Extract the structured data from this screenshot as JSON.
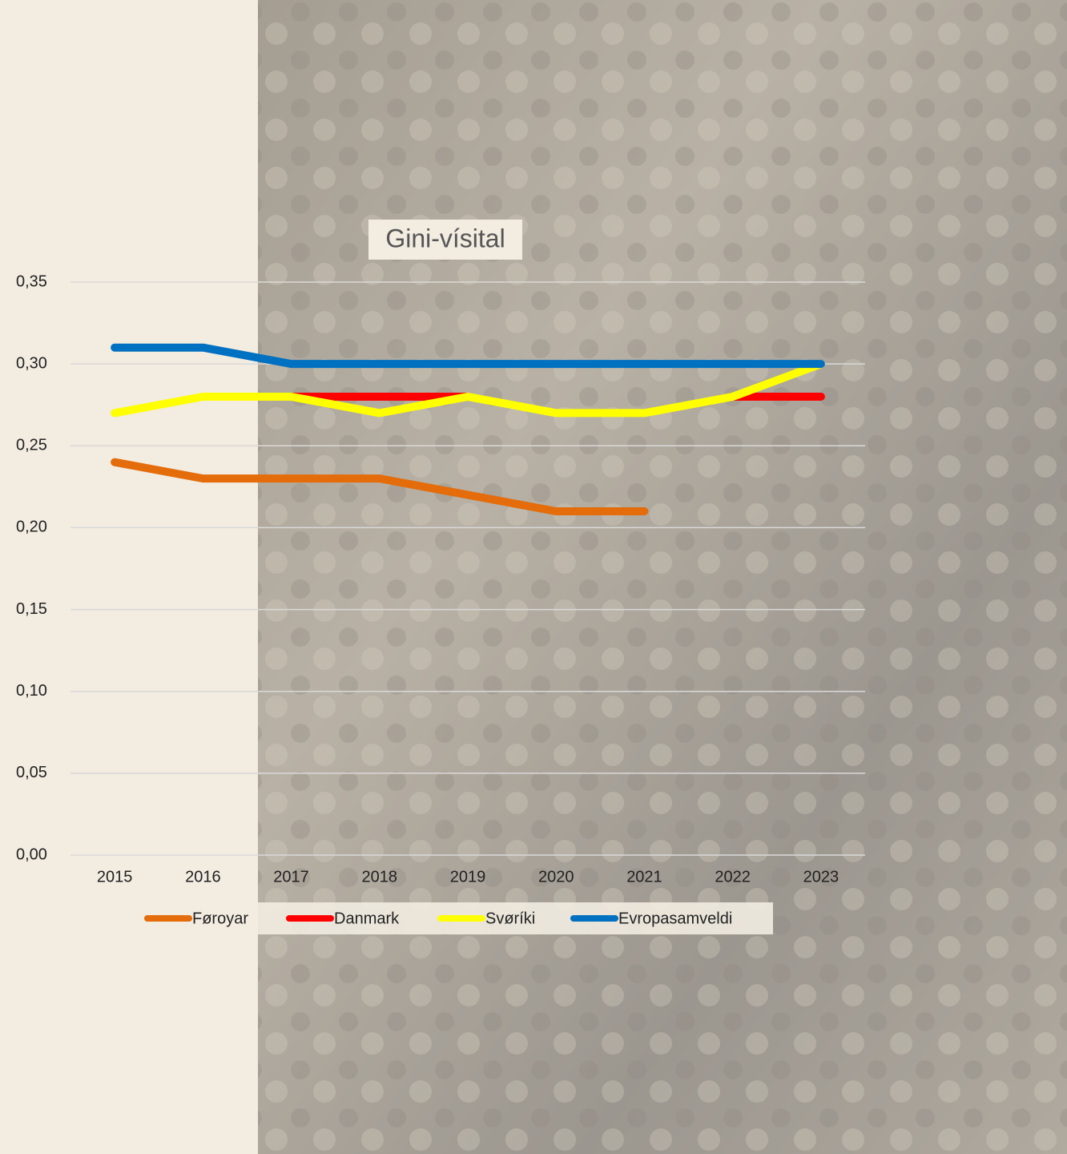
{
  "chart_data": {
    "type": "line",
    "title": "Gini-vísital",
    "categories": [
      "2015",
      "2016",
      "2017",
      "2018",
      "2019",
      "2020",
      "2021",
      "2022",
      "2023"
    ],
    "series": [
      {
        "name": "Føroyar",
        "color": "#e46c0a",
        "values": [
          0.24,
          0.23,
          0.23,
          0.23,
          0.22,
          0.21,
          0.21,
          null,
          null
        ]
      },
      {
        "name": "Danmark",
        "color": "#ff0000",
        "values": [
          null,
          null,
          0.28,
          0.28,
          0.28,
          null,
          null,
          0.28,
          0.28
        ]
      },
      {
        "name": "Svøríki",
        "color": "#ffff00",
        "values": [
          0.27,
          0.28,
          0.28,
          0.27,
          0.28,
          0.27,
          0.27,
          0.28,
          0.3
        ]
      },
      {
        "name": "Evropasamveldi",
        "color": "#0070c0",
        "values": [
          0.31,
          0.31,
          0.3,
          0.3,
          0.3,
          0.3,
          0.3,
          0.3,
          0.3
        ]
      }
    ],
    "ylim": [
      0,
      0.35
    ],
    "yticks": [
      {
        "value": 0,
        "label": "0,00"
      },
      {
        "value": 0.05,
        "label": "0,05"
      },
      {
        "value": 0.1,
        "label": "0,10"
      },
      {
        "value": 0.15,
        "label": "0,15"
      },
      {
        "value": 0.2,
        "label": "0,20"
      },
      {
        "value": 0.25,
        "label": "0,25"
      },
      {
        "value": 0.3,
        "label": "0,30"
      },
      {
        "value": 0.35,
        "label": "0,35"
      }
    ],
    "grid": true,
    "legend": "bottom"
  }
}
